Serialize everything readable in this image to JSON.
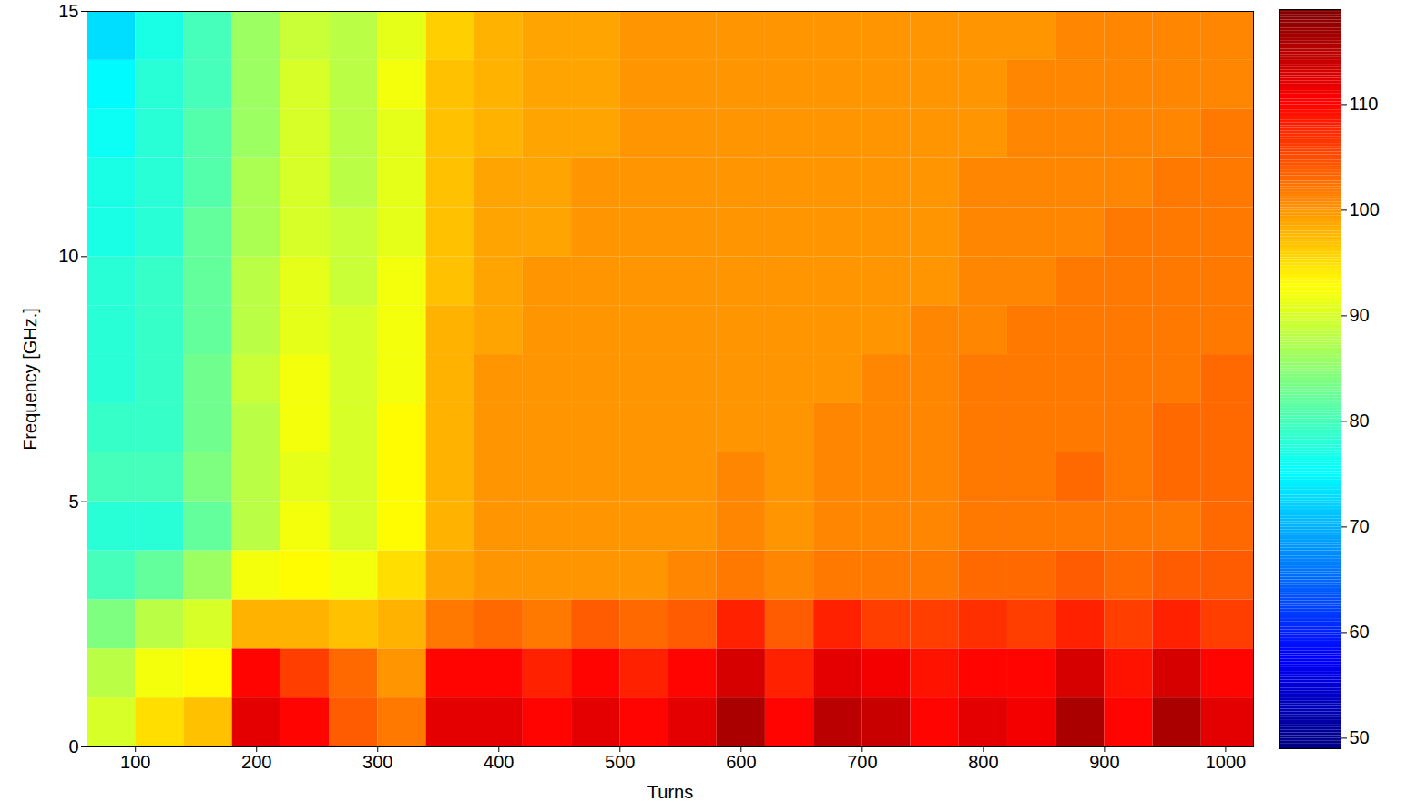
{
  "chart_data": {
    "type": "heatmap",
    "x_label": "Turns",
    "y_label": "Frequency [GHz.]",
    "xlim": [
      60,
      1023
    ],
    "xticks": [
      100,
      200,
      300,
      400,
      500,
      600,
      700,
      800,
      900,
      1000
    ],
    "ylim": [
      0,
      15
    ],
    "yticks": [
      0,
      5,
      10,
      15
    ],
    "x_bins": [
      60,
      100,
      140,
      180,
      220,
      260,
      300,
      340,
      380,
      420,
      460,
      500,
      540,
      580,
      620,
      660,
      700,
      740,
      780,
      820,
      860,
      900,
      940,
      980,
      1023
    ],
    "y_bins": [
      0,
      1,
      2,
      3,
      4,
      5,
      6,
      7,
      8,
      9,
      10,
      11,
      12,
      13,
      14,
      15
    ],
    "values": [
      [
        90,
        95,
        97,
        112,
        110,
        104,
        102,
        112,
        112,
        110,
        112,
        110,
        112,
        116,
        110,
        115,
        114,
        110,
        112,
        111,
        116,
        110,
        116,
        112
      ],
      [
        88,
        92,
        93,
        110,
        106,
        103,
        100,
        110,
        110,
        108,
        110,
        108,
        110,
        113,
        108,
        112,
        111,
        109,
        110,
        110,
        113,
        109,
        113,
        110
      ],
      [
        84,
        88,
        90,
        98,
        98,
        97,
        98,
        102,
        103,
        102,
        104,
        103,
        104,
        108,
        104,
        108,
        106,
        106,
        107,
        106,
        108,
        106,
        108,
        106
      ],
      [
        80,
        82,
        86,
        92,
        93,
        92,
        95,
        99,
        100,
        100,
        100,
        100,
        101,
        102,
        101,
        102,
        102,
        102,
        103,
        103,
        104,
        103,
        104,
        104
      ],
      [
        78,
        78,
        82,
        88,
        92,
        90,
        93,
        98,
        100,
        100,
        100,
        100,
        100,
        101,
        100,
        101,
        101,
        101,
        102,
        102,
        102,
        102,
        102,
        103
      ],
      [
        80,
        80,
        84,
        88,
        91,
        90,
        93,
        98,
        100,
        100,
        100,
        100,
        100,
        101,
        100,
        101,
        101,
        101,
        102,
        102,
        103,
        102,
        103,
        103
      ],
      [
        79,
        79,
        83,
        88,
        92,
        90,
        93,
        98,
        100,
        100,
        100,
        100,
        100,
        100,
        100,
        101,
        101,
        101,
        102,
        102,
        102,
        102,
        103,
        103
      ],
      [
        78,
        79,
        83,
        89,
        92,
        90,
        92,
        98,
        100,
        100,
        100,
        100,
        100,
        100,
        100,
        100,
        101,
        101,
        102,
        102,
        102,
        102,
        102,
        103
      ],
      [
        78,
        79,
        82,
        88,
        91,
        90,
        92,
        98,
        99,
        100,
        100,
        100,
        100,
        100,
        100,
        100,
        100,
        101,
        101,
        102,
        102,
        102,
        102,
        102
      ],
      [
        78,
        79,
        82,
        88,
        91,
        89,
        92,
        97,
        99,
        100,
        100,
        100,
        100,
        100,
        100,
        100,
        100,
        100,
        101,
        101,
        102,
        102,
        102,
        102
      ],
      [
        77,
        78,
        82,
        87,
        90,
        89,
        91,
        97,
        99,
        99,
        100,
        100,
        100,
        100,
        100,
        100,
        100,
        100,
        101,
        101,
        101,
        102,
        102,
        102
      ],
      [
        77,
        78,
        81,
        87,
        90,
        88,
        91,
        97,
        99,
        99,
        100,
        100,
        100,
        100,
        100,
        100,
        100,
        100,
        101,
        101,
        101,
        101,
        102,
        102
      ],
      [
        76,
        78,
        81,
        86,
        90,
        88,
        91,
        97,
        98,
        99,
        99,
        100,
        100,
        100,
        100,
        100,
        100,
        100,
        100,
        101,
        101,
        101,
        101,
        102
      ],
      [
        75,
        78,
        80,
        86,
        90,
        88,
        92,
        97,
        98,
        99,
        99,
        100,
        100,
        100,
        100,
        100,
        100,
        100,
        100,
        101,
        101,
        101,
        101,
        101
      ],
      [
        73,
        77,
        80,
        86,
        89,
        88,
        91,
        96,
        98,
        99,
        99,
        100,
        100,
        100,
        100,
        100,
        100,
        100,
        100,
        100,
        101,
        101,
        101,
        101
      ]
    ],
    "colorbar": {
      "range": [
        49,
        119
      ],
      "ticks": [
        50,
        60,
        70,
        80,
        90,
        100,
        110
      ]
    }
  }
}
